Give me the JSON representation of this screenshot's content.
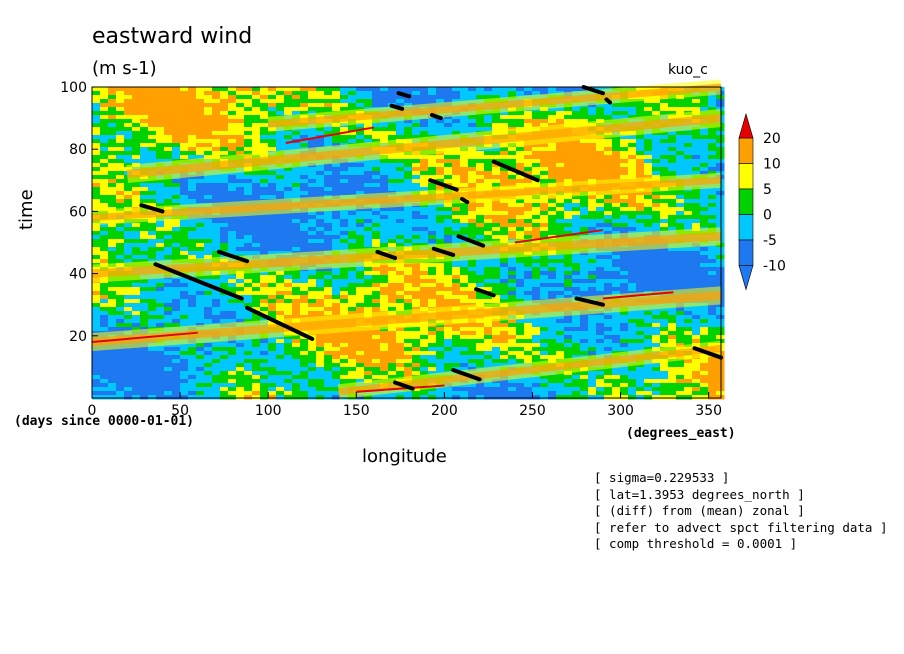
{
  "chart_data": {
    "type": "heatmap",
    "title": "eastward wind",
    "units": "(m s-1)",
    "model": "kuo_c",
    "xlabel": "longitude",
    "x_sublabel": "(days since 0000-01-01)",
    "x_units": "(degrees_east)",
    "ylabel": "time",
    "xlim": [
      0,
      357
    ],
    "ylim": [
      0,
      100
    ],
    "x_ticks": [
      "0",
      "50",
      "100",
      "150",
      "200",
      "250",
      "300",
      "350"
    ],
    "y_ticks": [
      "20",
      "40",
      "60",
      "80",
      "100"
    ],
    "colorbar": {
      "levels": [
        "-10",
        "-5",
        "0",
        "5",
        "10",
        "20"
      ],
      "colors": [
        "#1e78f0",
        "#00c8ff",
        "#00d200",
        "#ffff00",
        "#ffa000",
        "#e60000"
      ]
    },
    "bands": [
      {
        "x0": 0,
        "y0": 18,
        "x1": 357,
        "y1": 33,
        "w": 6
      },
      {
        "x0": 0,
        "y0": 40,
        "x1": 357,
        "y1": 52,
        "w": 6
      },
      {
        "x0": 20,
        "y0": 72,
        "x1": 357,
        "y1": 90,
        "w": 6
      },
      {
        "x0": 100,
        "y0": 88,
        "x1": 357,
        "y1": 100,
        "w": 5
      },
      {
        "x0": 140,
        "y0": 2,
        "x1": 357,
        "y1": 16,
        "w": 5
      },
      {
        "x0": 0,
        "y0": 58,
        "x1": 357,
        "y1": 70,
        "w": 5
      }
    ],
    "red_lines": [
      {
        "x0": 110,
        "y0": 82,
        "x1": 160,
        "y1": 87
      },
      {
        "x0": 0,
        "y0": 18,
        "x1": 60,
        "y1": 21
      },
      {
        "x0": 240,
        "y0": 50,
        "x1": 290,
        "y1": 54
      },
      {
        "x0": 290,
        "y0": 32,
        "x1": 330,
        "y1": 34
      },
      {
        "x0": 150,
        "y0": 2,
        "x1": 200,
        "y1": 4
      }
    ],
    "black_segments": [
      {
        "x0": 36,
        "y0": 43,
        "x1": 85,
        "y1": 32
      },
      {
        "x0": 88,
        "y0": 29,
        "x1": 125,
        "y1": 19
      },
      {
        "x0": 228,
        "y0": 76,
        "x1": 253,
        "y1": 70
      },
      {
        "x0": 28,
        "y0": 62,
        "x1": 40,
        "y1": 60
      },
      {
        "x0": 72,
        "y0": 47,
        "x1": 88,
        "y1": 44
      },
      {
        "x0": 192,
        "y0": 70,
        "x1": 207,
        "y1": 67
      },
      {
        "x0": 208,
        "y0": 52,
        "x1": 222,
        "y1": 49
      },
      {
        "x0": 194,
        "y0": 48,
        "x1": 205,
        "y1": 46
      },
      {
        "x0": 162,
        "y0": 47,
        "x1": 172,
        "y1": 45
      },
      {
        "x0": 218,
        "y0": 35,
        "x1": 228,
        "y1": 33
      },
      {
        "x0": 275,
        "y0": 32,
        "x1": 290,
        "y1": 30
      },
      {
        "x0": 205,
        "y0": 9,
        "x1": 220,
        "y1": 6
      },
      {
        "x0": 172,
        "y0": 5,
        "x1": 182,
        "y1": 3
      },
      {
        "x0": 342,
        "y0": 16,
        "x1": 357,
        "y1": 13
      },
      {
        "x0": 279,
        "y0": 100,
        "x1": 290,
        "y1": 98
      },
      {
        "x0": 170,
        "y0": 94,
        "x1": 176,
        "y1": 93
      },
      {
        "x0": 174,
        "y0": 98,
        "x1": 180,
        "y1": 97
      },
      {
        "x0": 193,
        "y0": 91,
        "x1": 198,
        "y1": 90
      },
      {
        "x0": 210,
        "y0": 64,
        "x1": 213,
        "y1": 63
      },
      {
        "x0": 292,
        "y0": 96,
        "x1": 294,
        "y1": 95
      }
    ]
  },
  "annotations": [
    "[ sigma=0.229533 ]",
    "[ lat=1.3953 degrees_north ]",
    "[ (diff) from (mean) zonal ]",
    "[ refer to advect spct filtering data ]",
    "[ comp threshold = 0.0001 ]"
  ]
}
